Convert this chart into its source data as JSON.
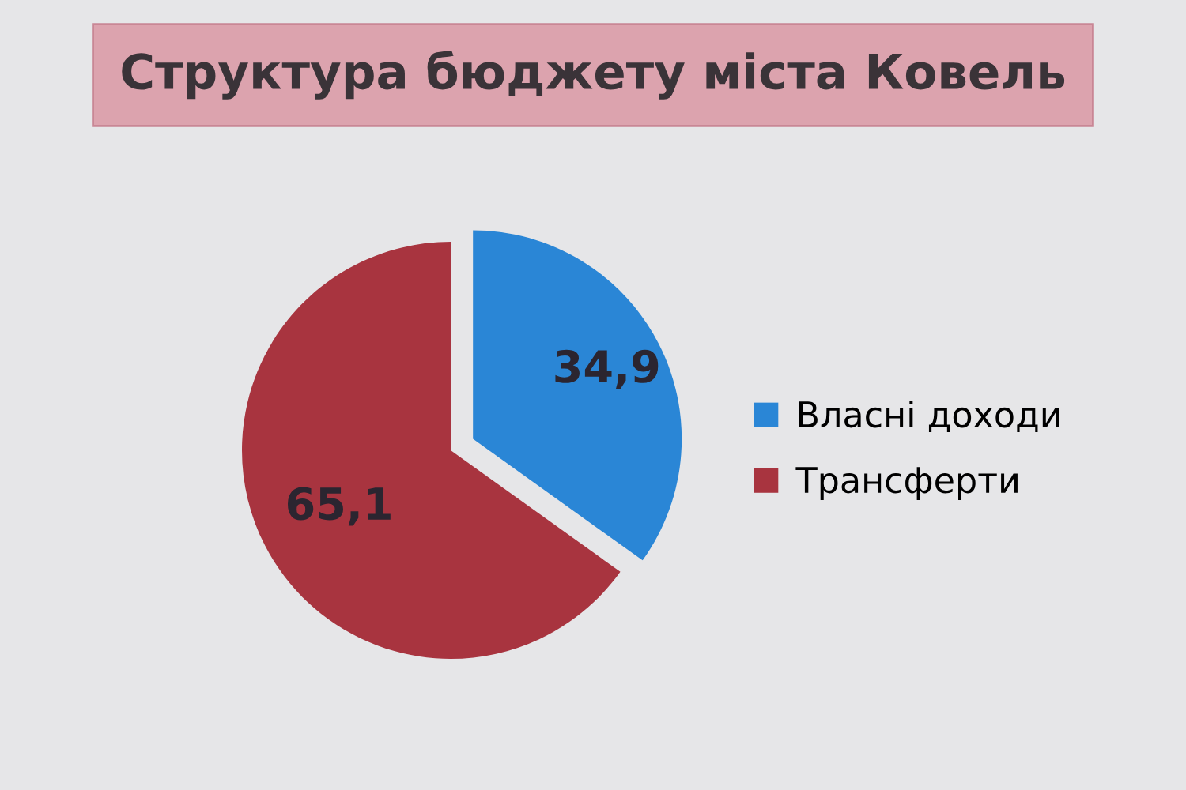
{
  "chart_data": {
    "type": "pie",
    "title": "Структура бюджету міста Ковель",
    "categories": [
      "Власні доходи",
      "Трансферти"
    ],
    "values": [
      34.9,
      65.1
    ],
    "colors": [
      "#2a86d6",
      "#a8343f"
    ],
    "value_labels": [
      "34,9",
      "65,1"
    ],
    "legend": "right"
  }
}
